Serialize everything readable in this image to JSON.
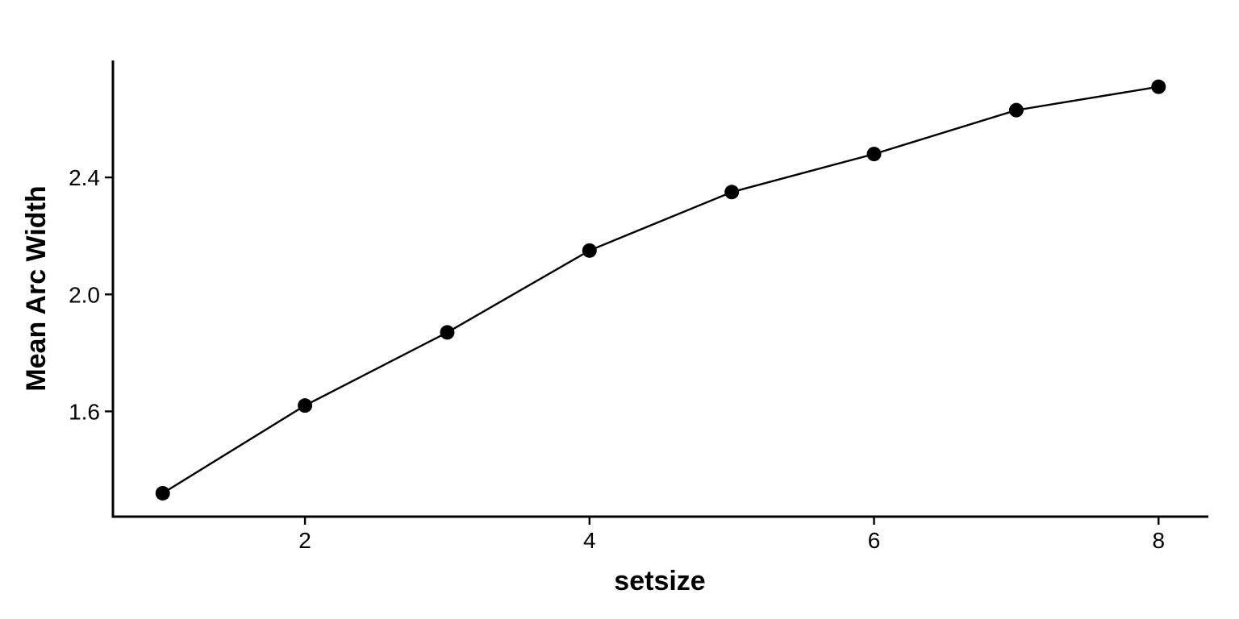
{
  "chart_data": {
    "type": "line",
    "title": "",
    "xlabel": "setsize",
    "ylabel": "Mean Arc Width",
    "x": [
      1,
      2,
      3,
      4,
      5,
      6,
      7,
      8
    ],
    "series": [
      {
        "values": [
          1.32,
          1.62,
          1.87,
          2.15,
          2.35,
          2.48,
          2.63,
          2.71
        ]
      }
    ],
    "xlim": [
      0.65,
      8.35
    ],
    "ylim": [
      1.24,
      2.8
    ],
    "xticks": [
      2,
      4,
      6,
      8
    ],
    "xtick_labels": [
      "2",
      "4",
      "6",
      "8"
    ],
    "yticks": [
      1.6,
      2.0,
      2.4
    ],
    "ytick_labels": [
      "1.6",
      "2.0",
      "2.4"
    ],
    "markers": true,
    "grid": false,
    "legend": "none",
    "colors": {
      "line": "#000000",
      "marker": "#000000",
      "axis": "#000000"
    }
  }
}
